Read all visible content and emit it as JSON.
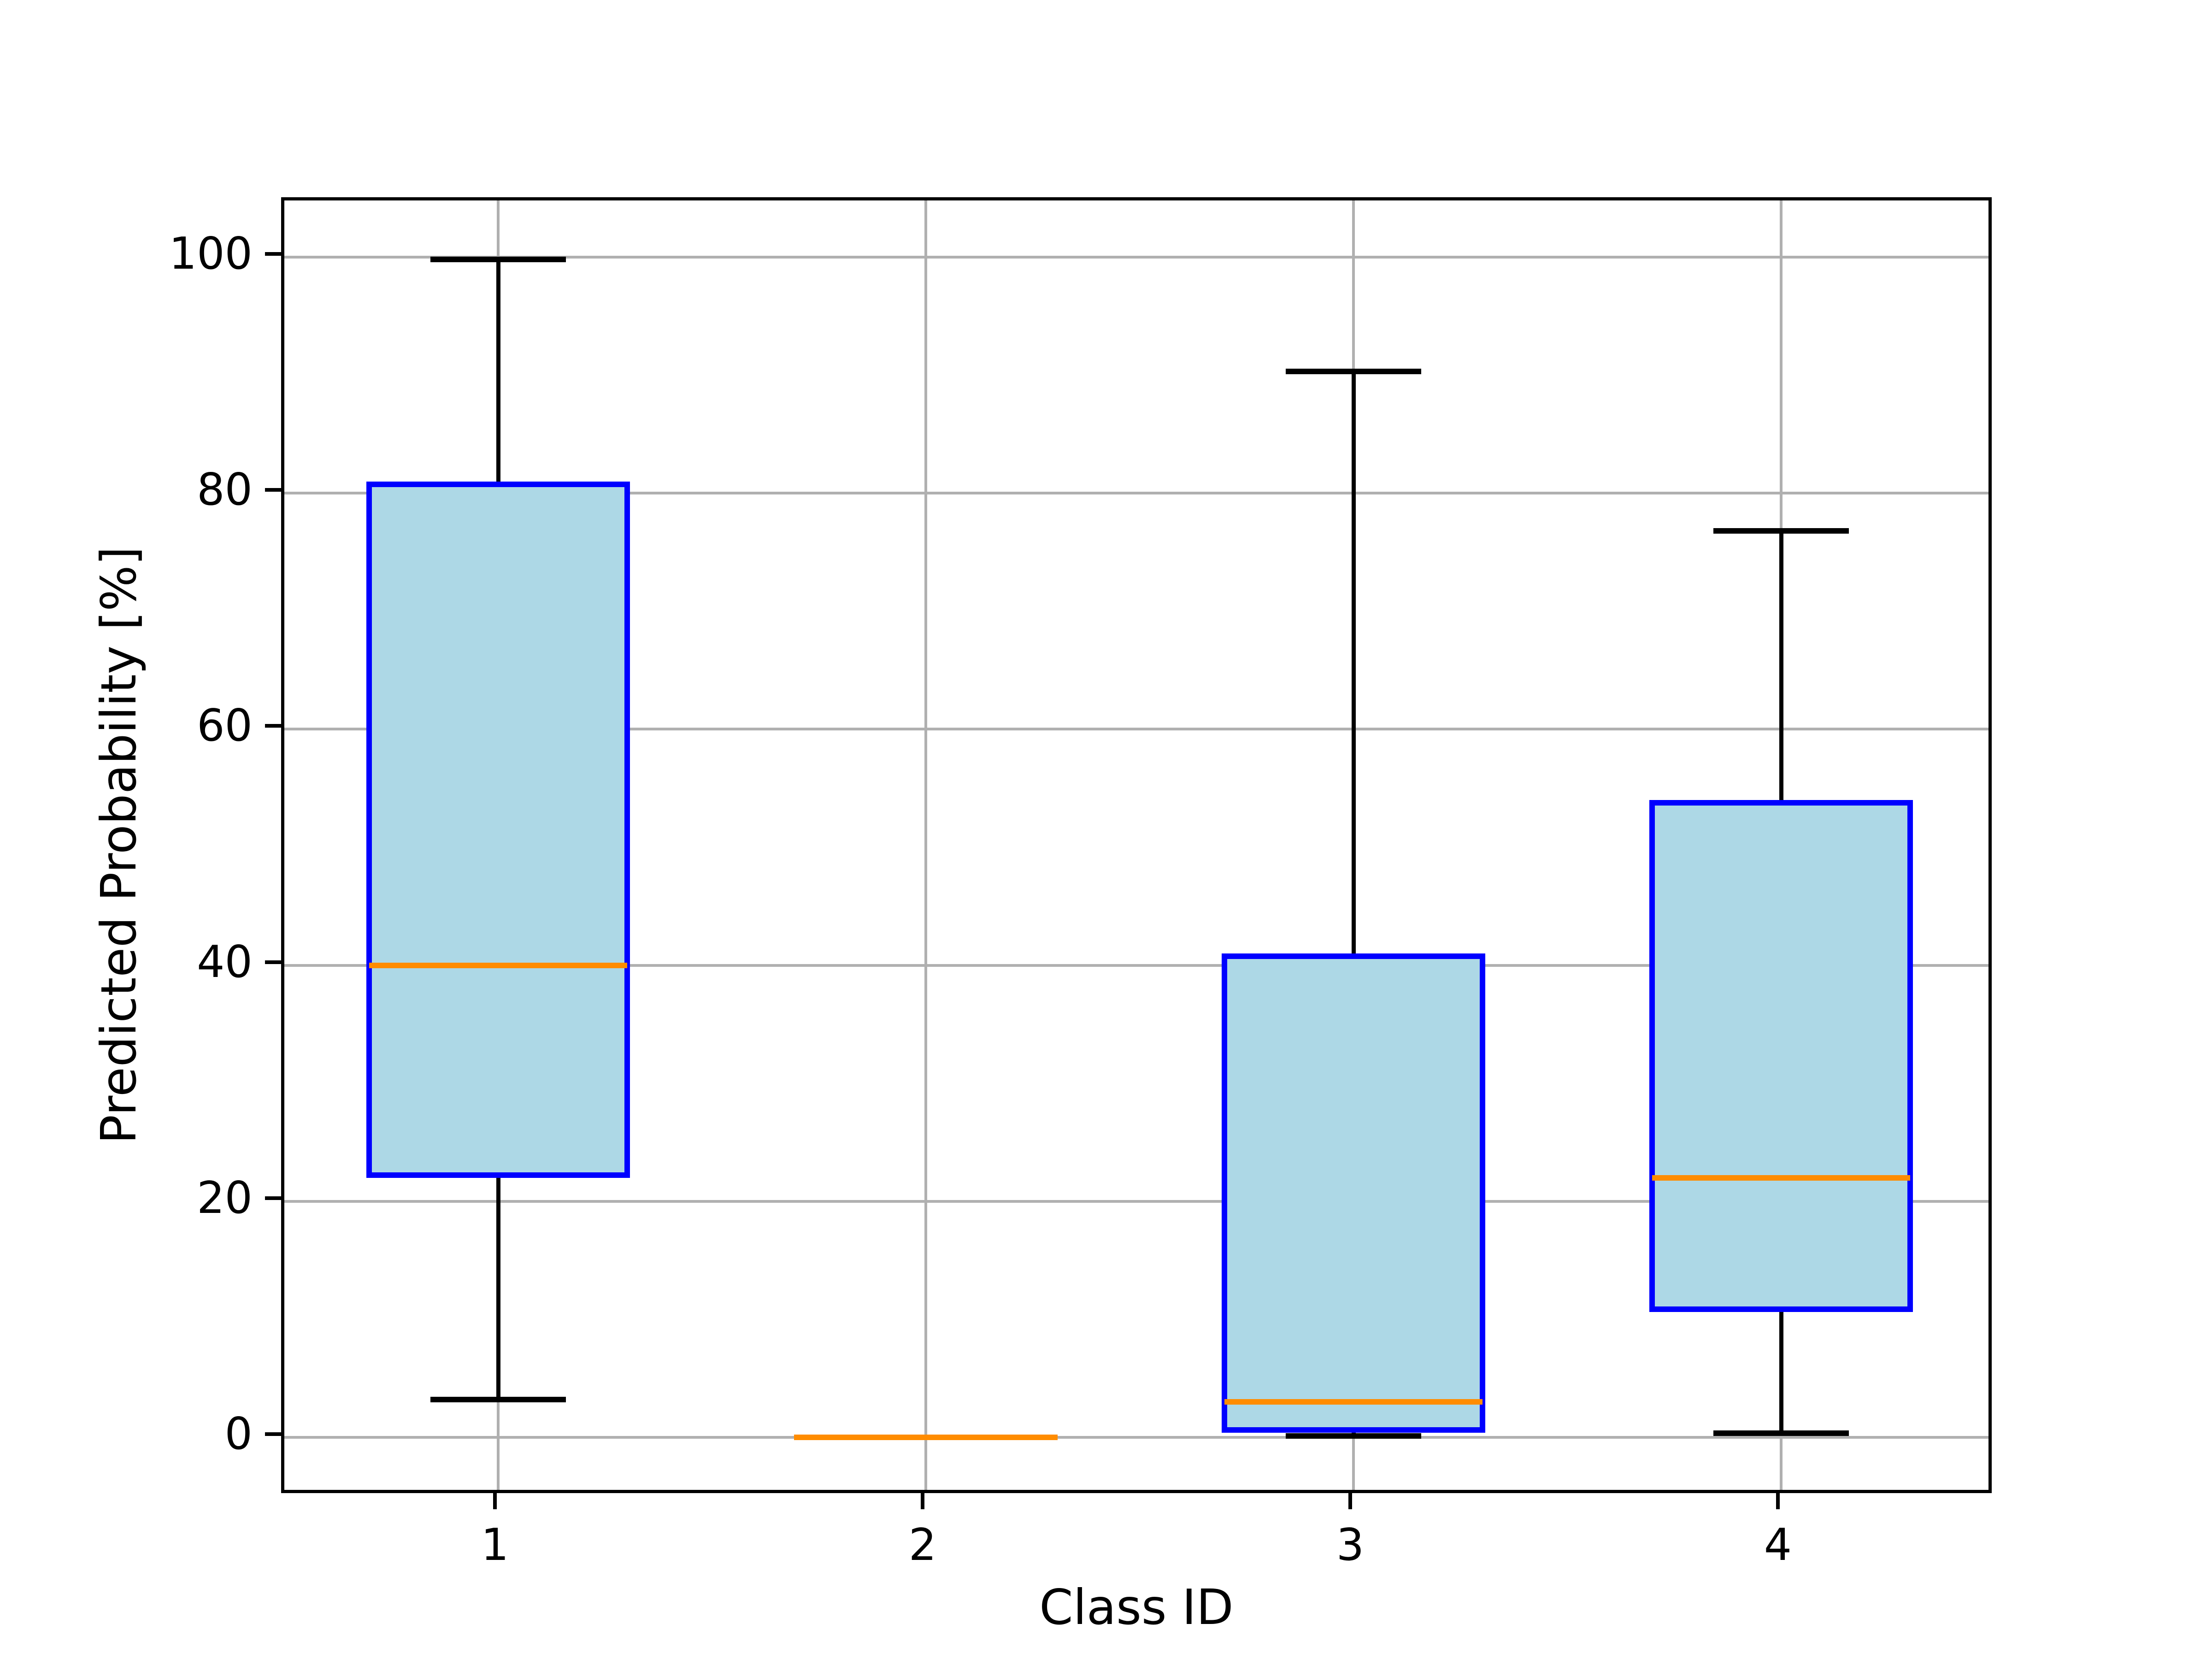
{
  "figure": {
    "background": "#ffffff"
  },
  "chart_data": {
    "type": "boxplot",
    "title": "",
    "xlabel": "Class ID",
    "ylabel": "Predicted Probability [%]",
    "categories": [
      "1",
      "2",
      "3",
      "4"
    ],
    "x_positions": [
      1,
      2,
      3,
      4
    ],
    "xlim": [
      0.5,
      4.5
    ],
    "ylim": [
      -5,
      104.8
    ],
    "yticks": [
      0,
      20,
      40,
      60,
      80,
      100
    ],
    "grid": true,
    "orientation": "vertical",
    "series": [
      {
        "class_id": "1",
        "whisker_low": 3.2,
        "q1": 22.0,
        "median": 40.0,
        "q3": 81.0,
        "whisker_high": 99.8
      },
      {
        "class_id": "2",
        "whisker_low": 0.0,
        "q1": 0.0,
        "median": 0.0,
        "q3": 0.0,
        "whisker_high": 0.0
      },
      {
        "class_id": "3",
        "whisker_low": 0.1,
        "q1": 0.4,
        "median": 3.0,
        "q3": 41.0,
        "whisker_high": 90.3
      },
      {
        "class_id": "4",
        "whisker_low": 0.35,
        "q1": 10.6,
        "median": 22.0,
        "q3": 54.0,
        "whisker_high": 76.8
      }
    ],
    "style": {
      "box_fill": "#add8e6",
      "box_edge": "#0000ff",
      "median_color": "#ff8c00",
      "whisker_color": "#000000",
      "grid_color": "#b0b0b0",
      "spine_color": "#000000",
      "box_width_frac": 0.154,
      "cap_width_frac": 0.079
    }
  }
}
